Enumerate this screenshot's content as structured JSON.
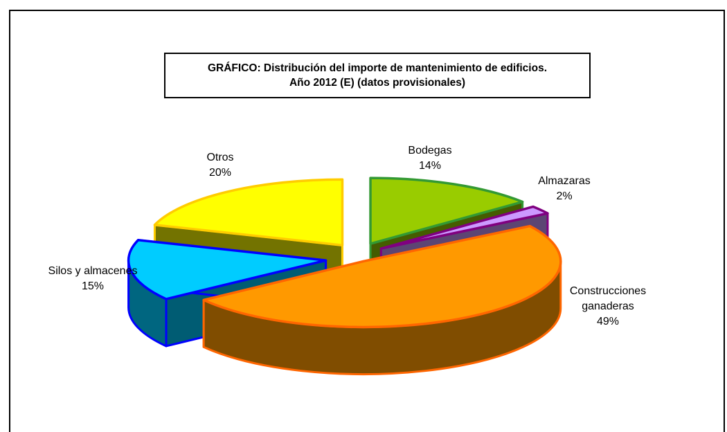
{
  "chart_data": {
    "type": "pie",
    "title_line1": "GRÁFICO: Distribución del importe de mantenimiento de edificios.",
    "title_line2": "Año 2012 (E) (datos provisionales)",
    "slices": [
      {
        "label": "Bodegas",
        "pct_label": "14%",
        "value": 14,
        "color": "#99CC00",
        "stroke": "#339933"
      },
      {
        "label": "Almazaras",
        "pct_label": "2%",
        "value": 2,
        "color": "#CC99FF",
        "stroke": "#800080"
      },
      {
        "label": "Construcciones ganaderas",
        "label_lines": [
          "Construcciones",
          "ganaderas"
        ],
        "pct_label": "49%",
        "value": 49,
        "color": "#FF9900",
        "stroke": "#FF6600"
      },
      {
        "label": "Silos y almacenes",
        "pct_label": "15%",
        "value": 15,
        "color": "#00CCFF",
        "stroke": "#0000FF"
      },
      {
        "label": "Otros",
        "pct_label": "20%",
        "value": 20,
        "color": "#FFFF00",
        "stroke": "#FFCC00"
      }
    ],
    "legend": "none",
    "style": "3d-exploded"
  }
}
